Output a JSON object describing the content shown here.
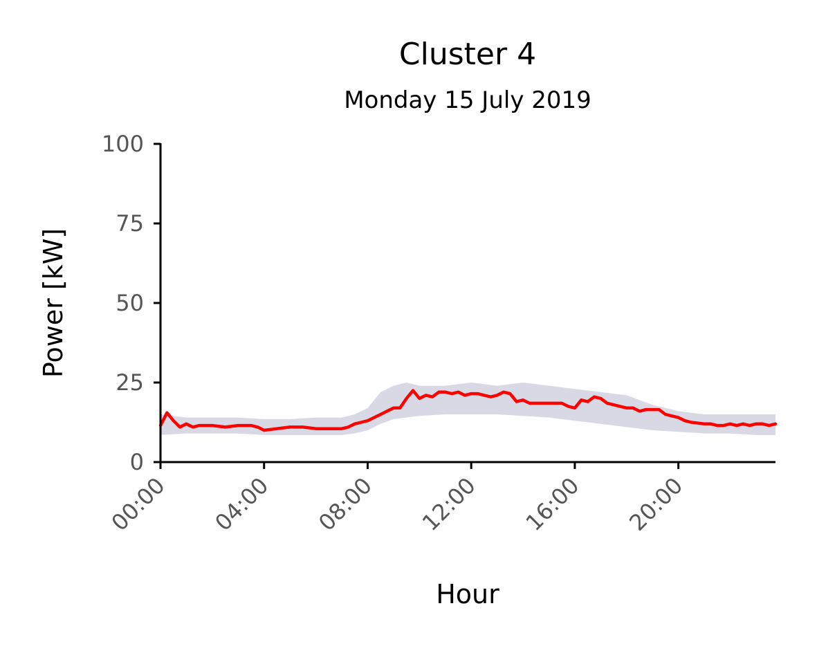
{
  "chart_data": {
    "type": "line",
    "title": "Cluster 4",
    "subtitle": "Monday 15 July 2019",
    "xlabel": "Hour",
    "ylabel": "Power [kW]",
    "xlim": [
      0,
      23.75
    ],
    "ylim": [
      0,
      100
    ],
    "x_unit": "hours",
    "x_ticks": [
      0,
      4,
      8,
      12,
      16,
      20
    ],
    "x_tick_labels": [
      "00:00",
      "04:00",
      "08:00",
      "12:00",
      "16:00",
      "20:00"
    ],
    "y_ticks": [
      0,
      25,
      50,
      75,
      100
    ],
    "y_tick_labels": [
      "0",
      "25",
      "50",
      "75",
      "100"
    ],
    "grid": false,
    "colors": {
      "series": "#ff0000",
      "band": "#c9c9dc"
    },
    "band": {
      "x": [
        0,
        1,
        2,
        3,
        4,
        5,
        6,
        7,
        7.5,
        8,
        8.5,
        9,
        9.5,
        10,
        11,
        12,
        13,
        14,
        15,
        16,
        17,
        18,
        19,
        20,
        21,
        22,
        23,
        23.75
      ],
      "lower": [
        8.5,
        9,
        9,
        9,
        8.5,
        8.5,
        8.5,
        8.5,
        9,
        10,
        12,
        13.5,
        14,
        14.5,
        15,
        15,
        15,
        14.5,
        14,
        13,
        12,
        11,
        10,
        9.5,
        9,
        9,
        8.5,
        8.5
      ],
      "upper": [
        15,
        14,
        14,
        14,
        13.5,
        13.5,
        14,
        14,
        15,
        17,
        22,
        24,
        25,
        24,
        24,
        25,
        24,
        25,
        24,
        23,
        22,
        21,
        18,
        16,
        15,
        15,
        15,
        15
      ]
    },
    "series": [
      {
        "x": [
          0,
          0.25,
          0.5,
          0.75,
          1,
          1.25,
          1.5,
          2,
          2.5,
          3,
          3.25,
          3.5,
          3.75,
          4,
          4.5,
          5,
          5.5,
          6,
          6.5,
          7,
          7.25,
          7.5,
          7.75,
          8,
          8.25,
          8.5,
          8.75,
          9,
          9.25,
          9.5,
          9.75,
          10,
          10.25,
          10.5,
          10.75,
          11,
          11.25,
          11.5,
          11.75,
          12,
          12.25,
          12.5,
          12.75,
          13,
          13.25,
          13.5,
          13.75,
          14,
          14.25,
          14.5,
          15,
          15.5,
          15.75,
          16,
          16.25,
          16.5,
          16.75,
          17,
          17.25,
          17.5,
          18,
          18.25,
          18.5,
          18.75,
          19,
          19.25,
          19.5,
          19.75,
          20,
          20.25,
          20.5,
          21,
          21.25,
          21.5,
          21.75,
          22,
          22.25,
          22.5,
          22.75,
          23,
          23.25,
          23.5,
          23.75
        ],
        "values": [
          11.5,
          15.5,
          13,
          11,
          12,
          11,
          11.5,
          11.5,
          11,
          11.5,
          11.5,
          11.5,
          11,
          10,
          10.5,
          11,
          11,
          10.5,
          10.5,
          10.5,
          11,
          12,
          12.5,
          13,
          14,
          15,
          16,
          17,
          17,
          20,
          22.5,
          20,
          21,
          20.5,
          22,
          22,
          21.5,
          22,
          21,
          21.5,
          21.5,
          21,
          20.5,
          21,
          22,
          21.5,
          19,
          19.5,
          18.5,
          18.5,
          18.5,
          18.5,
          17.5,
          17,
          19.5,
          19,
          20.5,
          20,
          18.5,
          18,
          17,
          17,
          16,
          16.5,
          16.5,
          16.5,
          15,
          14.5,
          14,
          13,
          12.5,
          12,
          12,
          11.5,
          11.5,
          12,
          11.5,
          12,
          11.5,
          12,
          12,
          11.5,
          12
        ]
      }
    ]
  }
}
